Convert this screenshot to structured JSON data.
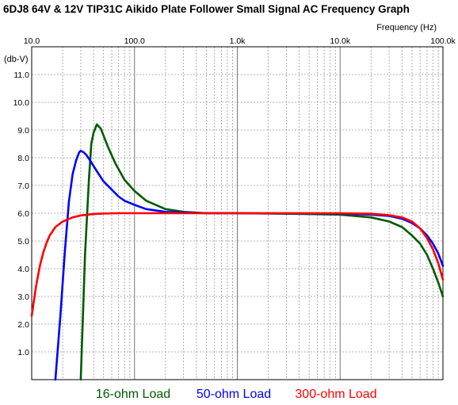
{
  "chart_data": {
    "type": "line",
    "title": "6DJ8 64V & 12V TIP31C Aikido Plate Follower Small Signal AC Frequency Graph",
    "xlabel": "Frequency  (Hz)",
    "ylabel": "(db-V)",
    "x_scale": "log",
    "xlim": [
      10,
      100000
    ],
    "ylim": [
      0,
      12
    ],
    "x_tick_values": [
      10,
      100,
      1000,
      10000,
      100000
    ],
    "x_tick_labels": [
      "10.0",
      "100.0",
      "1.0k",
      "10.0k",
      "100.0k"
    ],
    "y_tick_values": [
      1,
      2,
      3,
      4,
      5,
      6,
      7,
      8,
      9,
      10,
      11
    ],
    "y_tick_labels": [
      "1.0",
      "2.0",
      "3.0",
      "4.0",
      "5.0",
      "6.0",
      "7.0",
      "8.0",
      "9.0",
      "10.0",
      "11.0"
    ],
    "grid": true,
    "legend_position": "bottom",
    "series": [
      {
        "name": "16-ohm Load",
        "color": "#005a00",
        "x": [
          30,
          33,
          36,
          38,
          40,
          43,
          47,
          55,
          65,
          80,
          100,
          130,
          200,
          300,
          500,
          1000,
          5000,
          10000,
          20000,
          30000,
          40000,
          50000,
          60000,
          70000,
          80000,
          90000,
          100000
        ],
        "y": [
          0,
          4.5,
          7.2,
          8.5,
          8.9,
          9.2,
          9.05,
          8.4,
          7.8,
          7.2,
          6.8,
          6.45,
          6.15,
          6.05,
          6.0,
          6.0,
          5.97,
          5.95,
          5.85,
          5.7,
          5.5,
          5.2,
          4.9,
          4.5,
          4.0,
          3.5,
          3.0
        ]
      },
      {
        "name": "50-ohm Load",
        "color": "#0000ff",
        "x": [
          17,
          19,
          21,
          23,
          25,
          27,
          29,
          30,
          32,
          34,
          37,
          40,
          45,
          50,
          60,
          70,
          80,
          100,
          130,
          200,
          300,
          500,
          1000,
          10000,
          20000,
          30000,
          40000,
          50000,
          60000,
          70000,
          80000,
          90000,
          100000
        ],
        "y": [
          0,
          2.3,
          4.6,
          6.4,
          7.4,
          7.9,
          8.2,
          8.25,
          8.2,
          8.1,
          7.9,
          7.7,
          7.4,
          7.15,
          6.85,
          6.6,
          6.45,
          6.3,
          6.15,
          6.05,
          6.02,
          6.0,
          6.0,
          5.99,
          5.95,
          5.9,
          5.8,
          5.65,
          5.45,
          5.2,
          4.9,
          4.55,
          4.1
        ]
      },
      {
        "name": "300-ohm Load",
        "color": "#ff0000",
        "x": [
          10,
          11,
          12,
          13,
          14,
          15,
          17,
          20,
          25,
          30,
          40,
          50,
          70,
          100,
          200,
          1000,
          10000,
          20000,
          30000,
          40000,
          50000,
          60000,
          70000,
          80000,
          90000,
          100000
        ],
        "y": [
          2.3,
          3.35,
          4.1,
          4.6,
          4.95,
          5.2,
          5.5,
          5.7,
          5.85,
          5.92,
          5.97,
          5.99,
          6.0,
          6.0,
          6.0,
          6.0,
          6.0,
          5.98,
          5.93,
          5.85,
          5.7,
          5.45,
          5.1,
          4.7,
          4.2,
          3.6
        ]
      }
    ]
  }
}
